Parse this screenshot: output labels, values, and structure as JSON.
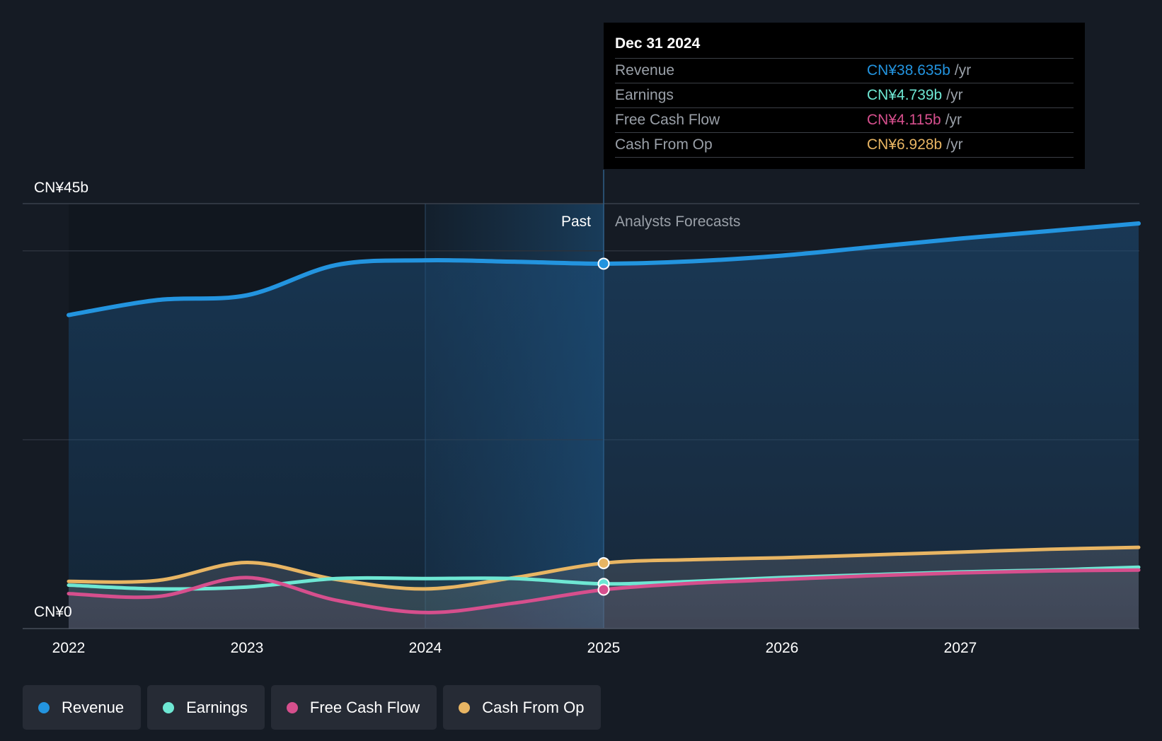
{
  "chart_data": {
    "type": "area",
    "y_axis": {
      "top_label": "CN¥45b",
      "bottom_label": "CN¥0",
      "ylim": [
        0,
        45
      ]
    },
    "x_axis": {
      "ticks": [
        "2022",
        "2023",
        "2024",
        "2025",
        "2026",
        "2027"
      ],
      "xlim": [
        2022,
        2028
      ]
    },
    "past_label": "Past",
    "forecast_label": "Analysts Forecasts",
    "divider_x": 2025,
    "series": [
      {
        "name": "Revenue",
        "color": "#2394df",
        "points": [
          [
            2022,
            33.2
          ],
          [
            2022.5,
            34.8
          ],
          [
            2023,
            35.3
          ],
          [
            2023.5,
            38.5
          ],
          [
            2024,
            39.0
          ],
          [
            2024.5,
            38.85
          ],
          [
            2025,
            38.64
          ],
          [
            2025.5,
            38.9
          ],
          [
            2026,
            39.5
          ],
          [
            2026.5,
            40.4
          ],
          [
            2027,
            41.3
          ],
          [
            2027.5,
            42.1
          ],
          [
            2028,
            42.9
          ]
        ]
      },
      {
        "name": "Earnings",
        "color": "#6ee7d3",
        "points": [
          [
            2022,
            4.6
          ],
          [
            2022.5,
            4.2
          ],
          [
            2023,
            4.4
          ],
          [
            2023.5,
            5.3
          ],
          [
            2024,
            5.3
          ],
          [
            2024.5,
            5.3
          ],
          [
            2025,
            4.74
          ],
          [
            2025.5,
            5.0
          ],
          [
            2026,
            5.4
          ],
          [
            2026.5,
            5.7
          ],
          [
            2027,
            6.0
          ],
          [
            2027.5,
            6.2
          ],
          [
            2028,
            6.5
          ]
        ]
      },
      {
        "name": "Free Cash Flow",
        "color": "#d64f8d",
        "points": [
          [
            2022,
            3.7
          ],
          [
            2022.5,
            3.4
          ],
          [
            2023,
            5.4
          ],
          [
            2023.5,
            3.0
          ],
          [
            2024,
            1.7
          ],
          [
            2024.5,
            2.7
          ],
          [
            2025,
            4.12
          ],
          [
            2025.5,
            4.8
          ],
          [
            2026,
            5.2
          ],
          [
            2026.5,
            5.6
          ],
          [
            2027,
            5.9
          ],
          [
            2027.5,
            6.1
          ],
          [
            2028,
            6.2
          ]
        ]
      },
      {
        "name": "Cash From Op",
        "color": "#e8b563",
        "points": [
          [
            2022,
            5.0
          ],
          [
            2022.5,
            5.1
          ],
          [
            2023,
            7.0
          ],
          [
            2023.5,
            5.2
          ],
          [
            2024,
            4.2
          ],
          [
            2024.5,
            5.4
          ],
          [
            2025,
            6.93
          ],
          [
            2025.5,
            7.3
          ],
          [
            2026,
            7.5
          ],
          [
            2026.5,
            7.8
          ],
          [
            2027,
            8.1
          ],
          [
            2027.5,
            8.4
          ],
          [
            2028,
            8.6
          ]
        ]
      }
    ]
  },
  "tooltip": {
    "date": "Dec 31 2024",
    "unit": "/yr",
    "rows": [
      {
        "label": "Revenue",
        "value": "CN¥38.635b",
        "color": "#2394df"
      },
      {
        "label": "Earnings",
        "value": "CN¥4.739b",
        "color": "#6ee7d3"
      },
      {
        "label": "Free Cash Flow",
        "value": "CN¥4.115b",
        "color": "#d64f8d"
      },
      {
        "label": "Cash From Op",
        "value": "CN¥6.928b",
        "color": "#e8b563"
      }
    ]
  },
  "legend": [
    {
      "label": "Revenue",
      "color": "#2394df"
    },
    {
      "label": "Earnings",
      "color": "#6ee7d3"
    },
    {
      "label": "Free Cash Flow",
      "color": "#d64f8d"
    },
    {
      "label": "Cash From Op",
      "color": "#e8b563"
    }
  ]
}
